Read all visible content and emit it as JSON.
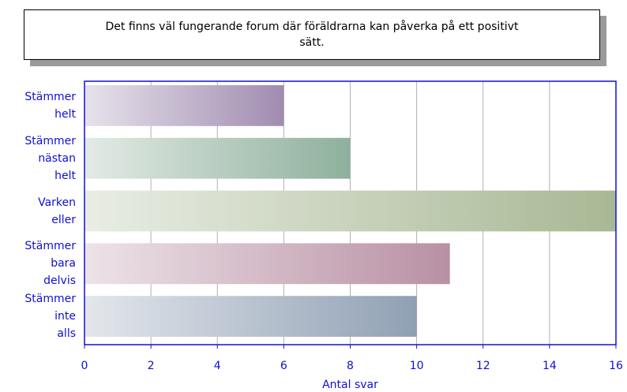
{
  "chart_data": {
    "type": "bar",
    "orientation": "horizontal",
    "title": "Det finns väl fungerande forum där föräldrarna kan påverka på ett positivt sätt.",
    "categories": [
      "Stämmer helt",
      "Stämmer nästan helt",
      "Varken eller",
      "Stämmer bara delvis",
      "Stämmer inte alls"
    ],
    "values": [
      6,
      8,
      16,
      11,
      10
    ],
    "colors": [
      "#a08cb0",
      "#8eb09c",
      "#a8b894",
      "#b890a4",
      "#90a0b4"
    ],
    "xlabel": "Antal svar",
    "xlim": [
      0,
      16
    ],
    "xticks": [
      0,
      2,
      4,
      6,
      8,
      10,
      12,
      14,
      16
    ],
    "grid": true
  }
}
